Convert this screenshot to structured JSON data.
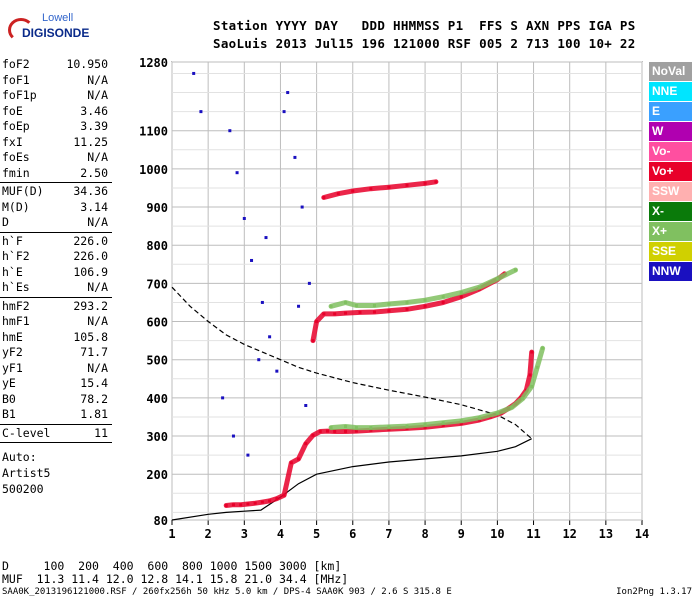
{
  "header": {
    "line1": "Station YYYY DAY   DDD HHMMSS P1  FFS S AXN PPS IGA PS",
    "line2": "SaoLuis 2013 Jul15 196 121000 RSF 005 2 713 100 10+ 22"
  },
  "logo": {
    "top": "Lowell",
    "bottom": "DIGISONDE"
  },
  "params_group1": [
    {
      "k": "foF2",
      "v": "10.950"
    },
    {
      "k": "foF1",
      "v": "N/A"
    },
    {
      "k": "foF1p",
      "v": "N/A"
    },
    {
      "k": "foE",
      "v": "3.46"
    },
    {
      "k": "foEp",
      "v": "3.39"
    },
    {
      "k": "fxI",
      "v": "11.25"
    },
    {
      "k": "foEs",
      "v": "N/A"
    },
    {
      "k": "fmin",
      "v": "2.50"
    }
  ],
  "params_group2": [
    {
      "k": "MUF(D)",
      "v": "34.36"
    },
    {
      "k": "M(D)",
      "v": "3.14"
    },
    {
      "k": "D",
      "v": "N/A"
    }
  ],
  "params_group3": [
    {
      "k": "h`F",
      "v": "226.0"
    },
    {
      "k": "h`F2",
      "v": "226.0"
    },
    {
      "k": "h`E",
      "v": "106.9"
    },
    {
      "k": "h`Es",
      "v": "N/A"
    }
  ],
  "params_group4": [
    {
      "k": "hmF2",
      "v": "293.2"
    },
    {
      "k": "hmF1",
      "v": "N/A"
    },
    {
      "k": "hmE",
      "v": "105.8"
    },
    {
      "k": "yF2",
      "v": "71.7"
    },
    {
      "k": "yF1",
      "v": "N/A"
    },
    {
      "k": "yE",
      "v": "15.4"
    },
    {
      "k": "B0",
      "v": "78.2"
    },
    {
      "k": "B1",
      "v": "1.81"
    }
  ],
  "clevel": {
    "k": "C-level",
    "v": "11"
  },
  "auto": [
    "Auto:",
    "Artist5",
    "500200"
  ],
  "legend": [
    {
      "label": "NoVal",
      "color": "#a0a0a0"
    },
    {
      "label": "NNE",
      "color": "#00e5ff"
    },
    {
      "label": "E",
      "color": "#3aa0ff"
    },
    {
      "label": "W",
      "color": "#b000b0"
    },
    {
      "label": "Vo-",
      "color": "#ff4fa0"
    },
    {
      "label": "Vo+",
      "color": "#e8002a"
    },
    {
      "label": "SSW",
      "color": "#ffb0b0"
    },
    {
      "label": "X-",
      "color": "#0a7a0a"
    },
    {
      "label": "X+",
      "color": "#80c060"
    },
    {
      "label": "SSE",
      "color": "#d0d000"
    },
    {
      "label": "NNW",
      "color": "#1a10c0"
    }
  ],
  "muf_table": {
    "d_line": "D     100  200  400  600  800 1000 1500 3000 [km]",
    "muf_line": "MUF  11.3 11.4 12.0 12.8 14.1 15.8 21.0 34.4 [MHz]"
  },
  "footer": {
    "left": "SAA0K_2013196121000.RSF / 260fx256h 50 kHz 5.0 km / DPS-4 SAA0K 903 / 2.6 S 315.8 E",
    "right": "Ion2Png 1.3.17"
  },
  "chart_data": {
    "type": "scatter",
    "title": "",
    "xlabel": "",
    "ylabel": "",
    "x_ticks": [
      1,
      2,
      3,
      4,
      5,
      6,
      7,
      8,
      9,
      10,
      11,
      12,
      13,
      14
    ],
    "y_ticks": [
      80,
      200,
      300,
      400,
      500,
      600,
      700,
      800,
      900,
      1000,
      1100,
      1280
    ],
    "xlim": [
      1,
      14
    ],
    "ylim": [
      80,
      1280
    ],
    "grid": true,
    "series": [
      {
        "name": "Vo+",
        "color": "#e8002a",
        "x": [
          2.5,
          2.7,
          2.9,
          3.1,
          3.3,
          3.5,
          3.7,
          3.9,
          4.1,
          4.3,
          4.5,
          4.7,
          4.9,
          5.1,
          5.3,
          5.5,
          5.8,
          6.1,
          6.5,
          7,
          7.5,
          8,
          8.5,
          9,
          9.5,
          9.8,
          10.1,
          10.3,
          10.5,
          10.65,
          10.8,
          10.9,
          10.95
        ],
        "y": [
          118,
          120,
          120,
          122,
          124,
          127,
          130,
          136,
          145,
          230,
          240,
          280,
          302,
          312,
          313,
          312,
          312,
          313,
          315,
          318,
          320,
          323,
          328,
          333,
          342,
          350,
          360,
          372,
          385,
          400,
          420,
          460,
          520
        ]
      },
      {
        "name": "Vo+",
        "color": "#e8002a",
        "x": [
          4.9,
          5.0,
          5.2,
          5.5,
          5.8,
          6.2,
          6.6,
          7,
          7.5,
          8,
          8.5,
          9,
          9.5,
          10,
          10.2
        ],
        "y": [
          550,
          600,
          620,
          620,
          622,
          624,
          625,
          628,
          632,
          640,
          650,
          665,
          685,
          710,
          725
        ]
      },
      {
        "name": "Vo+",
        "color": "#e8002a",
        "x": [
          5.2,
          5.6,
          6,
          6.5,
          7,
          7.5,
          8,
          8.3
        ],
        "y": [
          925,
          935,
          942,
          948,
          952,
          957,
          962,
          966
        ]
      },
      {
        "name": "X+",
        "color": "#80c060",
        "x": [
          5.4,
          5.8,
          6.1,
          6.5,
          7,
          7.5,
          8,
          8.5,
          9,
          9.5,
          10,
          10.4,
          10.7,
          10.95,
          11.1,
          11.25
        ],
        "y": [
          322,
          325,
          322,
          322,
          324,
          326,
          330,
          335,
          340,
          348,
          360,
          375,
          398,
          430,
          480,
          530
        ]
      },
      {
        "name": "X+",
        "color": "#80c060",
        "x": [
          5.4,
          5.8,
          6.1,
          6.6,
          7,
          7.5,
          8,
          8.5,
          9,
          9.5,
          10,
          10.5
        ],
        "y": [
          640,
          650,
          642,
          642,
          646,
          650,
          656,
          665,
          676,
          690,
          712,
          735
        ]
      },
      {
        "name": "NNW",
        "color": "#1a10c0",
        "x": [
          1.6,
          1.8,
          2.6,
          2.8,
          3.0,
          3.2,
          3.5,
          3.7,
          3.9,
          4.2,
          4.4,
          4.6,
          4.8,
          2.4,
          2.7,
          3.1,
          3.4,
          3.6,
          4.1,
          4.5,
          4.7
        ],
        "y": [
          1250,
          1150,
          1100,
          990,
          870,
          760,
          650,
          560,
          470,
          1200,
          1030,
          900,
          700,
          400,
          300,
          250,
          500,
          820,
          1150,
          640,
          380
        ]
      }
    ],
    "curves": [
      {
        "kind": "true-height profile",
        "style": "solid",
        "x": [
          1,
          2,
          2.5,
          3,
          3.46,
          4,
          4.5,
          5,
          6,
          7,
          8,
          9,
          10,
          10.5,
          10.95
        ],
        "y": [
          80,
          95,
          100,
          103,
          106,
          140,
          175,
          200,
          220,
          232,
          240,
          248,
          260,
          272,
          293
        ]
      },
      {
        "kind": "model profile",
        "style": "dashed",
        "x": [
          1,
          1.5,
          2,
          2.5,
          3,
          3.5,
          4,
          4.5,
          5,
          6,
          7,
          8,
          9,
          10,
          10.5,
          10.95
        ],
        "y": [
          690,
          640,
          600,
          565,
          540,
          520,
          500,
          480,
          465,
          440,
          420,
          402,
          382,
          355,
          330,
          293
        ]
      }
    ]
  }
}
